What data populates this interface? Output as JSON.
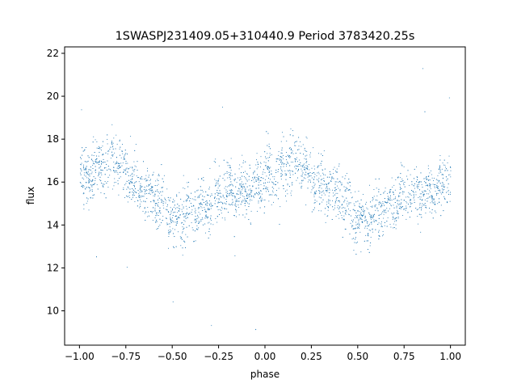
{
  "chart_data": {
    "type": "scatter",
    "title": "1SWASPJ231409.05+310440.9 Period 3783420.25s",
    "xlabel": "phase",
    "ylabel": "flux",
    "xlim": [
      -1.08,
      1.08
    ],
    "ylim": [
      8.4,
      22.3
    ],
    "xticks": [
      -1.0,
      -0.75,
      -0.5,
      -0.25,
      0.0,
      0.25,
      0.5,
      0.75,
      1.0
    ],
    "xtick_labels": [
      "−1.00",
      "−0.75",
      "−0.50",
      "−0.25",
      "0.00",
      "0.25",
      "0.50",
      "0.75",
      "1.00"
    ],
    "yticks": [
      10,
      12,
      14,
      16,
      18,
      20,
      22
    ],
    "ytick_labels": [
      "10",
      "12",
      "14",
      "16",
      "18",
      "20",
      "22"
    ],
    "grid": false,
    "marker_color": "#1f77b4",
    "series": [
      {
        "phase_range": [
          -1.0,
          1.0
        ],
        "phase_flux_trend": {
          "phase": [
            0.0,
            0.05,
            0.1,
            0.15,
            0.2,
            0.25,
            0.3,
            0.35,
            0.4,
            0.45,
            0.5,
            0.55,
            0.6,
            0.65,
            0.7,
            0.75,
            0.8,
            0.85,
            0.9,
            0.95,
            1.0
          ],
          "flux": [
            16.2,
            16.4,
            16.7,
            17.0,
            17.0,
            16.3,
            15.8,
            15.7,
            15.4,
            14.8,
            14.2,
            14.3,
            14.6,
            14.7,
            15.2,
            15.5,
            15.6,
            15.4,
            15.6,
            15.8,
            16.2
          ]
        },
        "flux_spread": 1.6,
        "outlier_flux_range": [
          9.0,
          21.5
        ]
      }
    ]
  }
}
